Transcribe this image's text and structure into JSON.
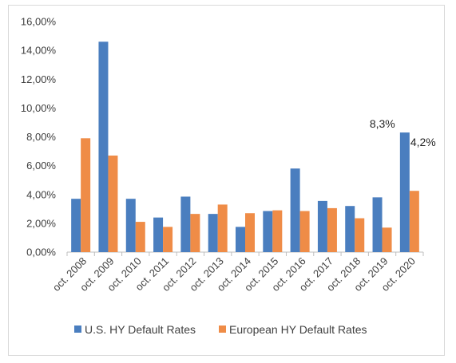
{
  "chart_data": {
    "type": "bar",
    "categories": [
      "oct. 2008",
      "oct. 2009",
      "oct. 2010",
      "oct. 2011",
      "oct. 2012",
      "oct. 2013",
      "oct. 2014",
      "oct. 2015",
      "oct. 2016",
      "oct. 2017",
      "oct. 2018",
      "oct. 2019",
      "oct. 2020"
    ],
    "series": [
      {
        "name": "U.S. HY Default Rates",
        "color": "#4a7ebf",
        "values": [
          3.7,
          14.6,
          3.7,
          2.4,
          3.85,
          2.65,
          1.75,
          2.85,
          5.8,
          3.55,
          3.2,
          3.8,
          8.3
        ]
      },
      {
        "name": "European HY Default Rates",
        "color": "#ef8c47",
        "values": [
          7.9,
          6.7,
          2.1,
          1.75,
          2.65,
          3.3,
          2.7,
          2.9,
          2.85,
          3.05,
          2.35,
          1.7,
          4.25
        ]
      }
    ],
    "ylim": [
      0,
      16
    ],
    "yticks": [
      "0,00%",
      "2,00%",
      "4,00%",
      "6,00%",
      "8,00%",
      "10,00%",
      "12,00%",
      "14,00%",
      "16,00%"
    ],
    "annotations": [
      {
        "text": "8,3%",
        "category": "oct. 2020",
        "series": 0
      },
      {
        "text": "4,2%",
        "category": "oct. 2020",
        "series": 1
      }
    ],
    "legend_position": "bottom",
    "grid": false
  }
}
